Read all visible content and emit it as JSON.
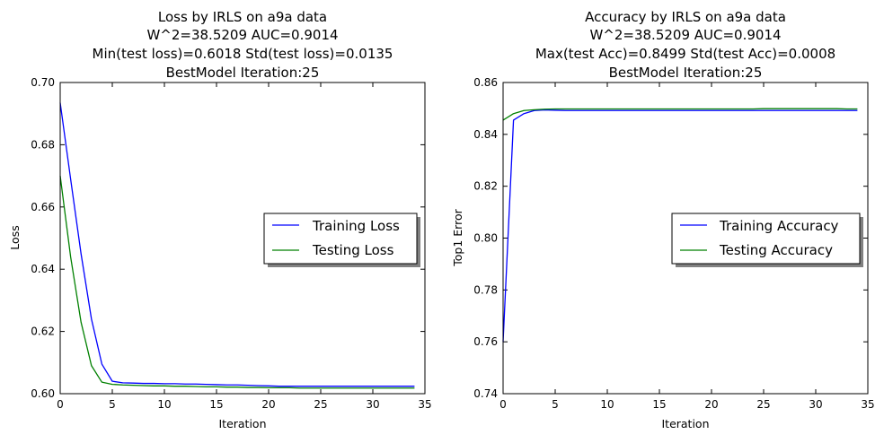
{
  "chart_data": [
    {
      "type": "line",
      "title_lines": [
        "Loss by IRLS on a9a data",
        "W^2=38.5209 AUC=0.9014",
        "Min(test loss)=0.6018 Std(test loss)=0.0135",
        "BestModel Iteration:25"
      ],
      "xlabel": "Iteration",
      "ylabel": "Loss",
      "xlim": [
        0,
        35
      ],
      "ylim": [
        0.6,
        0.7
      ],
      "xticks": [
        "0",
        "5",
        "10",
        "15",
        "20",
        "25",
        "30",
        "35"
      ],
      "yticks": [
        "0.60",
        "0.62",
        "0.64",
        "0.66",
        "0.68",
        "0.70"
      ],
      "legend": {
        "placement": "center-right",
        "entries": [
          "Training Loss",
          "Testing Loss"
        ]
      },
      "x": [
        0,
        1,
        2,
        3,
        4,
        5,
        6,
        7,
        8,
        9,
        10,
        11,
        12,
        13,
        14,
        15,
        16,
        17,
        18,
        19,
        20,
        21,
        22,
        23,
        24,
        25,
        26,
        27,
        28,
        29,
        30,
        31,
        32,
        33,
        34
      ],
      "series": [
        {
          "name": "Training Loss",
          "color": "#0000ff",
          "values": [
            0.6935,
            0.669,
            0.645,
            0.624,
            0.6095,
            0.604,
            0.6035,
            0.6034,
            0.6033,
            0.6033,
            0.6032,
            0.6032,
            0.6031,
            0.6031,
            0.603,
            0.6029,
            0.6028,
            0.6028,
            0.6027,
            0.6026,
            0.6025,
            0.6024,
            0.6024,
            0.6024,
            0.6024,
            0.6024,
            0.6024,
            0.6024,
            0.6024,
            0.6024,
            0.6024,
            0.6024,
            0.6024,
            0.6024,
            0.6024
          ]
        },
        {
          "name": "Testing Loss",
          "color": "#008000",
          "values": [
            0.67,
            0.644,
            0.623,
            0.609,
            0.6037,
            0.603,
            0.6028,
            0.6027,
            0.6026,
            0.6025,
            0.6025,
            0.6024,
            0.6024,
            0.6023,
            0.6022,
            0.6022,
            0.6021,
            0.6021,
            0.602,
            0.602,
            0.6019,
            0.6019,
            0.6019,
            0.6018,
            0.6018,
            0.6018,
            0.6018,
            0.6018,
            0.6018,
            0.6018,
            0.6018,
            0.6018,
            0.6018,
            0.6018,
            0.6018
          ]
        }
      ]
    },
    {
      "type": "line",
      "title_lines": [
        "Accuracy by IRLS on a9a data",
        "W^2=38.5209 AUC=0.9014",
        "Max(test Acc)=0.8499 Std(test Acc)=0.0008",
        "BestModel Iteration:25"
      ],
      "xlabel": "Iteration",
      "ylabel": "Top1 Error",
      "xlim": [
        0,
        35
      ],
      "ylim": [
        0.74,
        0.86
      ],
      "xticks": [
        "0",
        "5",
        "10",
        "15",
        "20",
        "25",
        "30",
        "35"
      ],
      "yticks": [
        "0.74",
        "0.76",
        "0.78",
        "0.80",
        "0.82",
        "0.84",
        "0.86"
      ],
      "legend": {
        "placement": "center-right",
        "entries": [
          "Training Accuracy",
          "Testing Accuracy"
        ]
      },
      "x": [
        0,
        1,
        2,
        3,
        4,
        5,
        6,
        7,
        8,
        9,
        10,
        11,
        12,
        13,
        14,
        15,
        16,
        17,
        18,
        19,
        20,
        21,
        22,
        23,
        24,
        25,
        26,
        27,
        28,
        29,
        30,
        31,
        32,
        33,
        34
      ],
      "series": [
        {
          "name": "Training Accuracy",
          "color": "#0000ff",
          "values": [
            0.76,
            0.8455,
            0.848,
            0.8492,
            0.8494,
            0.8493,
            0.8492,
            0.8492,
            0.8492,
            0.8492,
            0.8492,
            0.8492,
            0.8492,
            0.8492,
            0.8492,
            0.8492,
            0.8492,
            0.8492,
            0.8492,
            0.8492,
            0.8492,
            0.8492,
            0.8492,
            0.8492,
            0.8492,
            0.8492,
            0.8492,
            0.8492,
            0.8492,
            0.8492,
            0.8492,
            0.8492,
            0.8492,
            0.8492,
            0.8492
          ]
        },
        {
          "name": "Testing Accuracy",
          "color": "#008000",
          "values": [
            0.8455,
            0.848,
            0.8492,
            0.8495,
            0.8497,
            0.8498,
            0.8498,
            0.8498,
            0.8498,
            0.8498,
            0.8498,
            0.8498,
            0.8498,
            0.8498,
            0.8498,
            0.8498,
            0.8498,
            0.8498,
            0.8498,
            0.8498,
            0.8498,
            0.8498,
            0.8498,
            0.8498,
            0.8498,
            0.8499,
            0.8499,
            0.8499,
            0.8499,
            0.8499,
            0.8499,
            0.8499,
            0.8499,
            0.8498,
            0.8498
          ]
        }
      ]
    }
  ]
}
